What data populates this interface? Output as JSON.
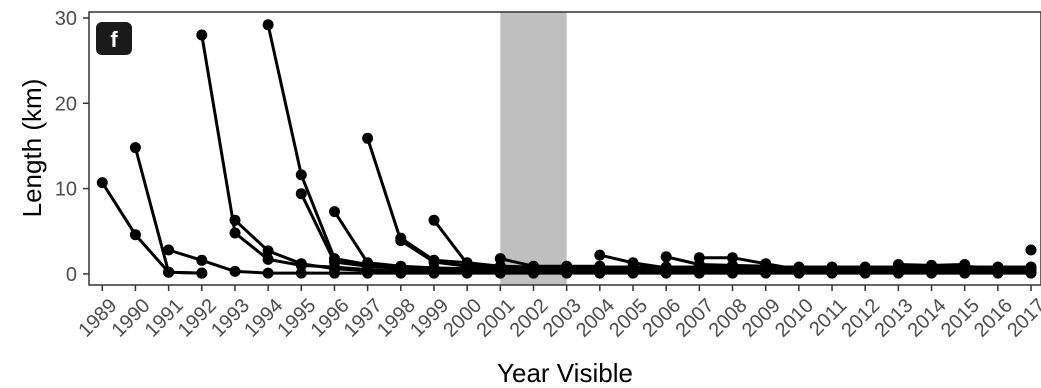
{
  "chart_data": {
    "type": "line",
    "panel_label": "f",
    "xlabel": "Year Visible",
    "ylabel": "Length (km)",
    "x_ticks": [
      "1989",
      "1990",
      "1991",
      "1992",
      "1993",
      "1994",
      "1995",
      "1996",
      "1997",
      "1998",
      "1999",
      "2000",
      "2001",
      "2002",
      "2003",
      "2004",
      "2005",
      "2006",
      "2007",
      "2008",
      "2009",
      "2010",
      "2011",
      "2012",
      "2013",
      "2014",
      "2015",
      "2016",
      "2017"
    ],
    "y_ticks": [
      0,
      10,
      20,
      30
    ],
    "xlim": [
      1988.6,
      2017.3
    ],
    "ylim": [
      -1.3,
      30.7
    ],
    "grid": false,
    "shaded_region": {
      "x_start": 2001,
      "x_end": 2003,
      "color": "#bfbfbf"
    },
    "line_color": "#000000",
    "series": [
      {
        "x": [
          1989,
          1990,
          1991,
          1992
        ],
        "y": [
          10.7,
          4.6,
          0.2,
          0.1
        ]
      },
      {
        "x": [
          1990,
          1991,
          1992
        ],
        "y": [
          14.8,
          0.2,
          0.1
        ]
      },
      {
        "x": [
          1991,
          1992,
          1993,
          1994,
          1995,
          1996,
          1997,
          1998,
          1999,
          2000,
          2001,
          2002,
          2003,
          2004,
          2005,
          2006,
          2007,
          2008,
          2009,
          2010,
          2011,
          2012,
          2013,
          2014,
          2015,
          2016,
          2017
        ],
        "y": [
          2.8,
          1.6,
          0.3,
          0.1,
          0.1,
          0.1,
          0.1,
          0.1,
          0.1,
          0.1,
          0.1,
          0.1,
          0.1,
          0.1,
          0.1,
          0.1,
          0.1,
          0.1,
          0.1,
          0.1,
          0.1,
          0.1,
          0.1,
          0.1,
          0.1,
          0.1,
          0.1
        ]
      },
      {
        "x": [
          1992,
          1993,
          1994,
          1995,
          1996,
          1997,
          1998,
          1999,
          2000,
          2001,
          2002,
          2003,
          2004,
          2005,
          2006,
          2007,
          2008,
          2009,
          2010,
          2011,
          2012,
          2013,
          2014,
          2015,
          2016,
          2017
        ],
        "y": [
          28.0,
          4.8,
          1.7,
          1.0,
          0.8,
          0.5,
          0.3,
          0.2,
          0.2,
          0.2,
          0.2,
          0.2,
          0.2,
          0.2,
          0.2,
          0.2,
          0.2,
          0.2,
          0.2,
          0.2,
          0.2,
          0.2,
          0.2,
          0.2,
          0.2,
          0.2
        ]
      },
      {
        "x": [
          1993,
          1994,
          1995,
          1996,
          1997,
          1998,
          1999,
          2000,
          2001,
          2002,
          2003,
          2004,
          2005,
          2006,
          2007,
          2008,
          2009,
          2010,
          2011,
          2012,
          2013,
          2014,
          2015,
          2016,
          2017
        ],
        "y": [
          6.3,
          2.7,
          1.2,
          0.6,
          0.4,
          0.3,
          0.3,
          0.3,
          0.3,
          0.3,
          0.3,
          0.3,
          0.3,
          0.3,
          0.3,
          0.3,
          0.3,
          0.3,
          0.3,
          0.3,
          0.3,
          0.3,
          0.3,
          0.3,
          0.3
        ]
      },
      {
        "x": [
          1994,
          1995,
          1996,
          1997,
          1998,
          1999,
          2000,
          2001,
          2002,
          2003,
          2004,
          2005,
          2006,
          2007,
          2008,
          2009,
          2010,
          2011,
          2012,
          2013,
          2014,
          2015,
          2016,
          2017
        ],
        "y": [
          29.2,
          11.6,
          1.8,
          1.1,
          0.5,
          0.4,
          0.4,
          0.4,
          0.4,
          0.4,
          0.4,
          0.4,
          0.4,
          0.4,
          0.4,
          0.4,
          0.4,
          0.4,
          0.4,
          0.4,
          0.4,
          0.4,
          0.4,
          0.4
        ]
      },
      {
        "x": [
          1995,
          1996,
          1997,
          1998,
          1999,
          2000,
          2001,
          2002,
          2003,
          2004,
          2005,
          2006,
          2007,
          2008,
          2009,
          2010,
          2011,
          2012,
          2013,
          2014,
          2015,
          2016,
          2017
        ],
        "y": [
          9.4,
          1.4,
          0.9,
          0.6,
          0.5,
          0.5,
          0.5,
          0.5,
          0.5,
          0.5,
          0.5,
          0.5,
          0.5,
          0.5,
          0.5,
          0.5,
          0.5,
          0.5,
          0.5,
          0.5,
          0.5,
          0.5,
          0.5
        ]
      },
      {
        "x": [
          1996,
          1997,
          1998,
          1999,
          2000,
          2001,
          2002,
          2003,
          2004,
          2005,
          2006,
          2007,
          2008,
          2009,
          2010,
          2011,
          2012,
          2013,
          2014,
          2015,
          2016,
          2017
        ],
        "y": [
          7.3,
          1.3,
          0.9,
          0.7,
          0.6,
          0.6,
          0.6,
          0.6,
          0.6,
          0.6,
          0.6,
          0.6,
          0.6,
          0.6,
          0.6,
          0.6,
          0.6,
          0.6,
          0.6,
          0.6,
          0.6,
          0.6
        ]
      },
      {
        "x": [
          1997,
          1998,
          1999,
          2000,
          2001,
          2002,
          2003,
          2004,
          2005,
          2006,
          2007,
          2008,
          2009,
          2010,
          2011,
          2012,
          2013,
          2014,
          2015,
          2016,
          2017
        ],
        "y": [
          15.9,
          3.9,
          1.4,
          0.9,
          0.7,
          0.7,
          0.7,
          0.7,
          0.7,
          0.7,
          0.7,
          0.7,
          0.7,
          0.7,
          0.7,
          0.7,
          0.7,
          0.7,
          0.7,
          0.7,
          0.7
        ]
      },
      {
        "x": [
          1999,
          2000,
          2001,
          2002,
          2003,
          2004,
          2005,
          2006,
          2007,
          2008,
          2009,
          2010,
          2011,
          2012,
          2013,
          2014,
          2015,
          2016,
          2017
        ],
        "y": [
          6.3,
          1.2,
          0.8,
          0.8,
          0.8,
          0.8,
          0.8,
          0.8,
          0.8,
          0.8,
          0.8,
          0.8,
          0.8,
          0.8,
          0.8,
          0.8,
          0.8,
          0.8,
          0.8
        ]
      },
      {
        "x": [
          1998,
          1999,
          2000,
          2001,
          2002,
          2003,
          2004,
          2005,
          2006,
          2007,
          2008,
          2009,
          2010,
          2011,
          2012,
          2013,
          2014,
          2015,
          2016,
          2017
        ],
        "y": [
          4.2,
          1.6,
          1.3,
          0.9,
          0.8,
          0.8,
          0.8,
          0.8,
          0.8,
          0.8,
          0.8,
          0.8,
          0.8,
          0.8,
          0.8,
          0.8,
          0.8,
          0.8,
          0.8,
          0.8
        ]
      },
      {
        "x": [
          2001,
          2002,
          2003,
          2004
        ],
        "y": [
          1.8,
          0.9,
          0.9,
          0.9
        ]
      },
      {
        "x": [
          2004,
          2005,
          2006
        ],
        "y": [
          2.2,
          1.3,
          0.7
        ]
      },
      {
        "x": [
          2006,
          2007,
          2008,
          2009
        ],
        "y": [
          2.0,
          1.1,
          1.0,
          0.9
        ]
      },
      {
        "x": [
          2007,
          2008,
          2009,
          2010
        ],
        "y": [
          1.9,
          1.9,
          1.2,
          0.5
        ]
      },
      {
        "x": [
          2013,
          2014,
          2015,
          2016,
          2017
        ],
        "y": [
          1.1,
          1.0,
          0.9,
          0.6,
          0.6
        ]
      },
      {
        "x": [
          2014,
          2015
        ],
        "y": [
          1.0,
          1.1
        ]
      },
      {
        "x": [
          2017
        ],
        "y": [
          2.8
        ]
      }
    ]
  }
}
